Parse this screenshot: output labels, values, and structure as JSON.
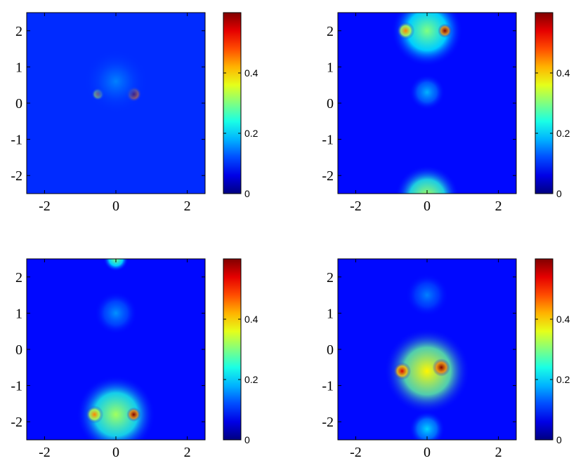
{
  "chart_data": [
    {
      "type": "heatmap",
      "xlim": [
        -2.5,
        2.5
      ],
      "ylim": [
        -2.5,
        2.5
      ],
      "xticks": [
        -2,
        0,
        2
      ],
      "yticks": [
        2,
        1,
        0,
        -1,
        -2
      ],
      "colormap": "jet",
      "clim": [
        0,
        0.6
      ],
      "colorbar_ticks": [
        0,
        0.2,
        0.4
      ],
      "background_level": 0.1,
      "blobs": [
        {
          "x": -0.5,
          "y": 0.25,
          "r": 0.18,
          "value": 0.45
        },
        {
          "x": 0.5,
          "y": 0.25,
          "r": 0.22,
          "value": 0.6
        },
        {
          "x": 0.0,
          "y": 0.6,
          "r": 0.9,
          "value": 0.15
        }
      ]
    },
    {
      "type": "heatmap",
      "xlim": [
        -2.5,
        2.5
      ],
      "ylim": [
        -2.5,
        2.5
      ],
      "xticks": [
        -2,
        0,
        2
      ],
      "yticks": [
        2,
        1,
        0,
        -1,
        -2
      ],
      "colormap": "jet",
      "clim": [
        0,
        0.6
      ],
      "colorbar_ticks": [
        0,
        0.2,
        0.4
      ],
      "background_level": 0.08,
      "blobs": [
        {
          "x": 0.0,
          "y": 2.0,
          "r": 1.0,
          "value": 0.3
        },
        {
          "x": -0.6,
          "y": 2.0,
          "r": 0.25,
          "value": 0.45
        },
        {
          "x": 0.5,
          "y": 2.0,
          "r": 0.2,
          "value": 0.6
        },
        {
          "x": 0.0,
          "y": -2.6,
          "r": 0.9,
          "value": 0.33
        },
        {
          "x": 0.0,
          "y": 0.3,
          "r": 0.5,
          "value": 0.18
        }
      ]
    },
    {
      "type": "heatmap",
      "xlim": [
        -2.5,
        2.5
      ],
      "ylim": [
        -2.5,
        2.5
      ],
      "xticks": [
        -2,
        0,
        2
      ],
      "yticks": [
        2,
        1,
        0,
        -1,
        -2
      ],
      "colormap": "jet",
      "clim": [
        0,
        0.6
      ],
      "colorbar_ticks": [
        0,
        0.2,
        0.4
      ],
      "background_level": 0.08,
      "blobs": [
        {
          "x": 0.0,
          "y": -1.8,
          "r": 1.1,
          "value": 0.32
        },
        {
          "x": -0.6,
          "y": -1.8,
          "r": 0.25,
          "value": 0.45
        },
        {
          "x": 0.5,
          "y": -1.8,
          "r": 0.2,
          "value": 0.6
        },
        {
          "x": 0.0,
          "y": 2.5,
          "r": 0.35,
          "value": 0.3
        },
        {
          "x": 0.0,
          "y": 1.0,
          "r": 0.6,
          "value": 0.16
        }
      ]
    },
    {
      "type": "heatmap",
      "xlim": [
        -2.5,
        2.5
      ],
      "ylim": [
        -2.5,
        2.5
      ],
      "xticks": [
        -2,
        0,
        2
      ],
      "yticks": [
        2,
        1,
        0,
        -1,
        -2
      ],
      "colormap": "jet",
      "clim": [
        0,
        0.6
      ],
      "colorbar_ticks": [
        0,
        0.2,
        0.4
      ],
      "background_level": 0.08,
      "blobs": [
        {
          "x": 0.0,
          "y": -0.6,
          "r": 1.2,
          "value": 0.38
        },
        {
          "x": -0.7,
          "y": -0.6,
          "r": 0.25,
          "value": 0.55
        },
        {
          "x": 0.4,
          "y": -0.5,
          "r": 0.25,
          "value": 0.6
        },
        {
          "x": 0.0,
          "y": -2.2,
          "r": 0.5,
          "value": 0.2
        },
        {
          "x": 0.0,
          "y": 1.5,
          "r": 0.6,
          "value": 0.15
        }
      ]
    }
  ]
}
